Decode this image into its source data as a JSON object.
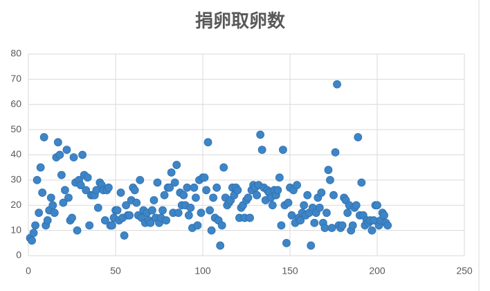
{
  "chart_data": {
    "type": "scatter",
    "title": "捐卵取卵数",
    "x": [
      1,
      2,
      3,
      4,
      5,
      6,
      7,
      8,
      9,
      10,
      11,
      12,
      13,
      14,
      15,
      16,
      17,
      18,
      19,
      20,
      21,
      22,
      23,
      24,
      25,
      26,
      27,
      28,
      29,
      30,
      31,
      32,
      33,
      34,
      35,
      36,
      37,
      38,
      39,
      40,
      41,
      42,
      43,
      44,
      45,
      46,
      47,
      48,
      49,
      50,
      51,
      52,
      53,
      54,
      55,
      56,
      57,
      58,
      59,
      60,
      61,
      62,
      63,
      64,
      65,
      66,
      67,
      68,
      69,
      70,
      71,
      72,
      73,
      74,
      75,
      76,
      77,
      78,
      79,
      80,
      81,
      82,
      83,
      84,
      85,
      86,
      87,
      88,
      89,
      90,
      91,
      92,
      93,
      94,
      95,
      96,
      97,
      98,
      99,
      100,
      101,
      102,
      103,
      104,
      105,
      106,
      107,
      108,
      109,
      110,
      111,
      112,
      113,
      114,
      115,
      116,
      117,
      118,
      119,
      120,
      121,
      122,
      123,
      124,
      125,
      126,
      127,
      128,
      129,
      130,
      131,
      132,
      133,
      134,
      135,
      136,
      137,
      138,
      139,
      140,
      141,
      142,
      143,
      144,
      145,
      146,
      147,
      148,
      149,
      150,
      151,
      152,
      153,
      154,
      155,
      156,
      157,
      158,
      159,
      160,
      161,
      162,
      163,
      164,
      165,
      166,
      167,
      168,
      169,
      170,
      171,
      172,
      173,
      174,
      175,
      176,
      177,
      178,
      179,
      180,
      181,
      182,
      183,
      184,
      185,
      186,
      187,
      188,
      189,
      190,
      191,
      192,
      193,
      194,
      195,
      196,
      197,
      198,
      199,
      200,
      201,
      202,
      203,
      204,
      205,
      206
    ],
    "series": [
      {
        "color": "#3d85c6",
        "values": [
          7,
          6,
          9,
          12,
          30,
          17,
          35,
          25,
          47,
          12,
          14,
          18,
          23,
          20,
          17,
          39,
          45,
          40,
          32,
          21,
          26,
          42,
          23,
          14,
          15,
          39,
          29,
          10,
          30,
          28,
          40,
          32,
          26,
          31,
          12,
          24,
          24,
          24,
          26,
          19,
          29,
          28,
          26,
          14,
          26,
          27,
          12,
          12,
          15,
          18,
          18,
          14,
          25,
          15,
          8,
          20,
          16,
          16,
          22,
          27,
          26,
          21,
          16,
          30,
          15,
          18,
          13,
          17,
          14,
          13,
          18,
          22,
          15,
          29,
          13,
          15,
          18,
          24,
          14,
          27,
          27,
          33,
          17,
          29,
          36,
          17,
          25,
          20,
          24,
          20,
          27,
          16,
          19,
          11,
          27,
          23,
          12,
          30,
          17,
          31,
          31,
          26,
          45,
          18,
          10,
          23,
          15,
          27,
          14,
          4,
          12,
          35,
          23,
          20,
          21,
          22,
          27,
          24,
          27,
          26,
          15,
          19,
          20,
          15,
          22,
          23,
          15,
          26,
          28,
          27,
          24,
          28,
          48,
          42,
          27,
          22,
          26,
          25,
          23,
          20,
          26,
          24,
          26,
          31,
          12,
          42,
          20,
          5,
          21,
          27,
          16,
          26,
          13,
          28,
          15,
          14,
          17,
          20,
          16,
          24,
          17,
          4,
          19,
          13,
          17,
          23,
          19,
          25,
          13,
          11,
          17,
          34,
          30,
          11,
          24,
          41,
          68,
          12,
          11,
          12,
          23,
          22,
          17,
          20,
          10,
          12,
          19,
          20,
          47,
          16,
          29,
          16,
          12,
          14,
          13,
          14,
          10,
          14,
          20,
          20,
          12,
          14,
          17,
          16,
          13,
          12
        ]
      }
    ],
    "xlim": [
      0,
      250
    ],
    "xticks": [
      0,
      50,
      100,
      150,
      200,
      250
    ],
    "ylim": [
      0,
      80
    ],
    "yticks": [
      0,
      10,
      20,
      30,
      40,
      50,
      60,
      70,
      80
    ],
    "grid": true
  }
}
